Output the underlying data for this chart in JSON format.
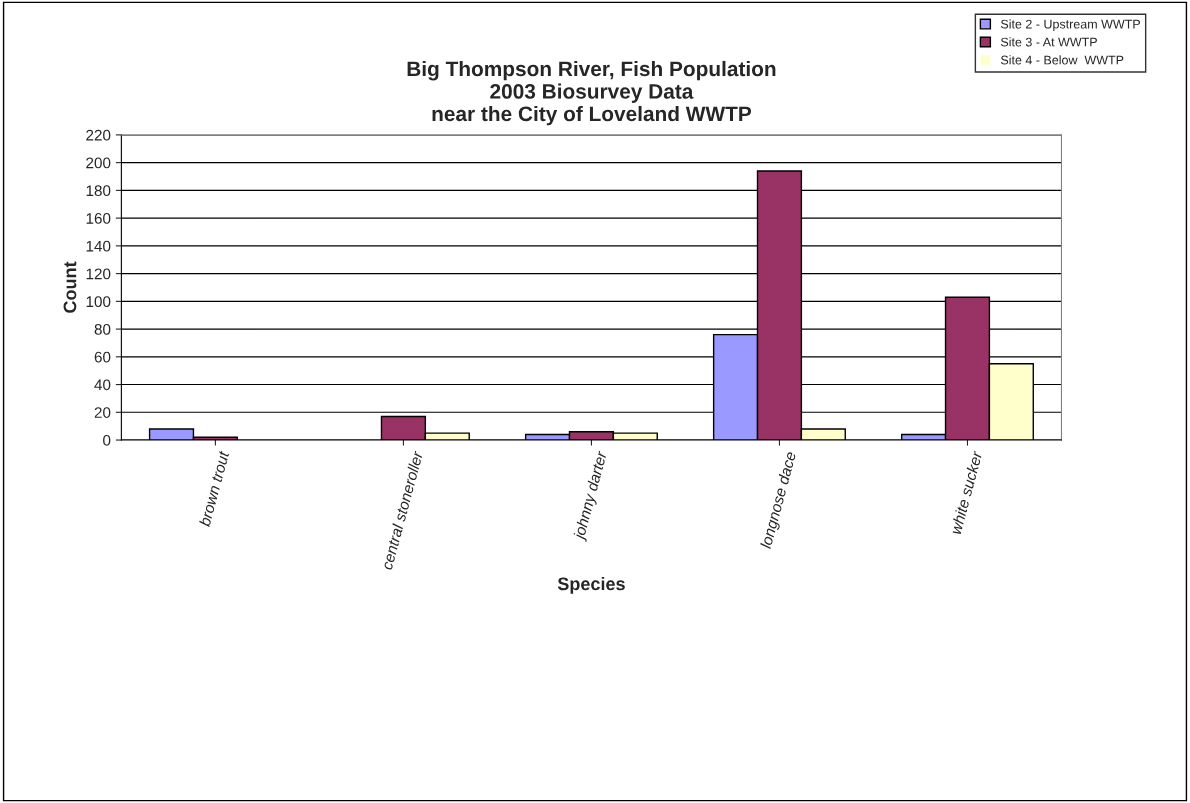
{
  "chart_data": {
    "type": "bar",
    "title": "Big Thompson River, Fish Population\n2003 Biosurvey Data\nnear the City of Loveland WWTP",
    "xlabel": "Species",
    "ylabel": "Count",
    "categories": [
      "brown trout",
      "central stoneroller",
      "johnny darter",
      "longnose dace",
      "white sucker"
    ],
    "series": [
      {
        "name": "Site 2 - Upstream WWTP",
        "color": "#9999ff",
        "values": [
          8,
          0,
          4,
          76,
          4
        ]
      },
      {
        "name": "Site 3 - At WWTP",
        "color": "#993366",
        "values": [
          2,
          17,
          6,
          194,
          103
        ]
      },
      {
        "name": "Site 4 - Below  WWTP",
        "color": "#ffffcc",
        "values": [
          0,
          5,
          5,
          8,
          55
        ]
      }
    ],
    "ylim": [
      0,
      220
    ],
    "yticks": [
      0,
      20,
      40,
      60,
      80,
      100,
      120,
      140,
      160,
      180,
      200,
      220
    ],
    "grid": "y",
    "legend": "top right"
  }
}
